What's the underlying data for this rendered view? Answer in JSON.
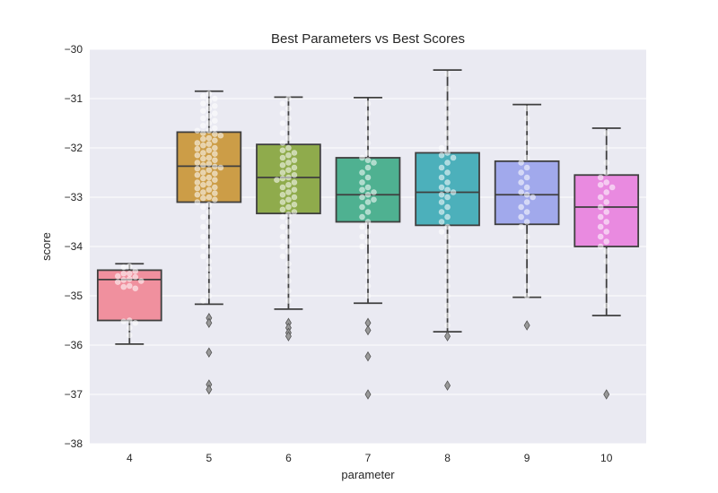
{
  "chart_data": {
    "type": "box",
    "title": "Best Parameters vs Best Scores",
    "xlabel": "parameter",
    "ylabel": "score",
    "ylim": [
      -38,
      -30
    ],
    "yticks": [
      -30,
      -31,
      -32,
      -33,
      -34,
      -35,
      -36,
      -37,
      -38
    ],
    "ytick_labels": [
      "−30",
      "−31",
      "−32",
      "−33",
      "−34",
      "−35",
      "−36",
      "−37",
      "−38"
    ],
    "grid": true,
    "background": "#eaeaf2",
    "categories": [
      "4",
      "5",
      "6",
      "7",
      "8",
      "9",
      "10"
    ],
    "boxes": [
      {
        "category": "4",
        "whisker_low": -35.98,
        "q1": -35.5,
        "median": -34.67,
        "q3": -34.48,
        "whisker_high": -34.35,
        "outliers": [],
        "color": "#f0909e"
      },
      {
        "category": "5",
        "whisker_low": -35.17,
        "q1": -33.1,
        "median": -32.37,
        "q3": -31.68,
        "whisker_high": -30.85,
        "outliers": [
          -35.45,
          -35.55,
          -36.15,
          -36.8,
          -36.9
        ],
        "color": "#cc9d47"
      },
      {
        "category": "6",
        "whisker_low": -35.27,
        "q1": -33.33,
        "median": -32.6,
        "q3": -31.93,
        "whisker_high": -30.97,
        "outliers": [
          -35.55,
          -35.65,
          -35.75,
          -35.82
        ],
        "color": "#8fab4c"
      },
      {
        "category": "7",
        "whisker_low": -35.15,
        "q1": -33.5,
        "median": -32.95,
        "q3": -32.2,
        "whisker_high": -30.98,
        "outliers": [
          -35.55,
          -35.7,
          -36.23,
          -37.0
        ],
        "color": "#4fb191"
      },
      {
        "category": "8",
        "whisker_low": -35.73,
        "q1": -33.57,
        "median": -32.9,
        "q3": -32.1,
        "whisker_high": -30.42,
        "outliers": [
          -35.82,
          -36.82
        ],
        "color": "#4cb0bb"
      },
      {
        "category": "9",
        "whisker_low": -35.03,
        "q1": -33.55,
        "median": -32.95,
        "q3": -32.27,
        "whisker_high": -31.12,
        "outliers": [
          -35.6
        ],
        "color": "#a1a9ec"
      },
      {
        "category": "10",
        "whisker_low": -35.4,
        "q1": -34.0,
        "median": -33.2,
        "q3": -32.55,
        "whisker_high": -31.6,
        "outliers": [
          -37.0
        ],
        "color": "#e98ae0"
      }
    ],
    "swarm_points": [
      {
        "category": "4",
        "values": [
          -34.4,
          -34.42,
          -34.5,
          -34.55,
          -34.55,
          -34.6,
          -34.62,
          -34.66,
          -34.68,
          -34.7,
          -34.72,
          -34.8,
          -34.82,
          -34.85,
          -35.5,
          -35.52,
          -35.55,
          -35.65,
          -35.8
        ]
      },
      {
        "category": "5",
        "values": [
          -30.9,
          -30.95,
          -31.0,
          -31.05,
          -31.1,
          -31.15,
          -31.2,
          -31.25,
          -31.3,
          -31.35,
          -31.4,
          -31.45,
          -31.5,
          -31.55,
          -31.6,
          -31.65,
          -31.65,
          -31.7,
          -31.72,
          -31.75,
          -31.8,
          -31.82,
          -31.85,
          -31.9,
          -31.92,
          -31.95,
          -32.0,
          -32.02,
          -32.05,
          -32.1,
          -32.12,
          -32.15,
          -32.2,
          -32.22,
          -32.25,
          -32.3,
          -32.32,
          -32.35,
          -32.38,
          -32.4,
          -32.42,
          -32.45,
          -32.5,
          -32.52,
          -32.55,
          -32.6,
          -32.62,
          -32.65,
          -32.7,
          -32.72,
          -32.75,
          -32.8,
          -32.82,
          -32.85,
          -32.9,
          -32.92,
          -32.95,
          -33.0,
          -33.02,
          -33.05,
          -33.1,
          -33.15,
          -33.2,
          -33.3,
          -33.4,
          -33.5,
          -33.6,
          -33.7,
          -33.8,
          -33.9,
          -34.0,
          -34.1,
          -34.2,
          -34.3,
          -34.45,
          -34.6,
          -34.8,
          -35.0,
          -35.1
        ]
      },
      {
        "category": "6",
        "values": [
          -31.0,
          -31.1,
          -31.2,
          -31.3,
          -31.4,
          -31.5,
          -31.6,
          -31.7,
          -31.8,
          -31.9,
          -32.0,
          -32.05,
          -32.1,
          -32.15,
          -32.2,
          -32.25,
          -32.3,
          -32.35,
          -32.4,
          -32.45,
          -32.5,
          -32.55,
          -32.6,
          -32.62,
          -32.65,
          -32.7,
          -32.75,
          -32.8,
          -32.85,
          -32.9,
          -32.95,
          -33.0,
          -33.05,
          -33.1,
          -33.15,
          -33.2,
          -33.25,
          -33.3,
          -33.35,
          -33.4,
          -33.5,
          -33.6,
          -33.7,
          -33.8,
          -33.9,
          -34.0,
          -34.1,
          -34.2,
          -34.35,
          -34.5,
          -34.7,
          -34.9,
          -35.1
        ]
      },
      {
        "category": "7",
        "values": [
          -31.1,
          -31.3,
          -31.5,
          -31.7,
          -31.9,
          -32.1,
          -32.2,
          -32.25,
          -32.3,
          -32.4,
          -32.5,
          -32.6,
          -32.7,
          -32.8,
          -32.85,
          -32.9,
          -32.95,
          -33.0,
          -33.05,
          -33.1,
          -33.2,
          -33.3,
          -33.4,
          -33.5,
          -33.6,
          -33.7,
          -33.8,
          -33.9,
          -34.0,
          -34.2,
          -34.4,
          -34.6,
          -34.8,
          -35.0
        ]
      },
      {
        "category": "8",
        "values": [
          -30.5,
          -30.8,
          -31.1,
          -31.3,
          -31.5,
          -31.7,
          -31.9,
          -32.0,
          -32.1,
          -32.15,
          -32.2,
          -32.3,
          -32.4,
          -32.5,
          -32.6,
          -32.7,
          -32.8,
          -32.85,
          -32.9,
          -32.95,
          -33.0,
          -33.1,
          -33.2,
          -33.3,
          -33.4,
          -33.5,
          -33.6,
          -33.7,
          -33.8,
          -34.0,
          -34.2,
          -34.4,
          -34.6,
          -34.8,
          -35.0,
          -35.2,
          -35.4,
          -35.6
        ]
      },
      {
        "category": "9",
        "values": [
          -31.2,
          -31.4,
          -31.6,
          -31.8,
          -32.0,
          -32.2,
          -32.3,
          -32.4,
          -32.5,
          -32.6,
          -32.7,
          -32.8,
          -32.9,
          -32.95,
          -33.0,
          -33.1,
          -33.2,
          -33.3,
          -33.4,
          -33.5,
          -33.6,
          -33.8,
          -34.0,
          -34.2,
          -34.5,
          -34.8,
          -35.0
        ]
      },
      {
        "category": "10",
        "values": [
          -31.7,
          -32.0,
          -32.3,
          -32.5,
          -32.6,
          -32.7,
          -32.75,
          -32.8,
          -32.9,
          -33.0,
          -33.1,
          -33.2,
          -33.3,
          -33.4,
          -33.5,
          -33.6,
          -33.7,
          -33.8,
          -33.9,
          -34.0,
          -34.1,
          -34.3,
          -34.6,
          -34.9,
          -35.2
        ]
      }
    ]
  }
}
